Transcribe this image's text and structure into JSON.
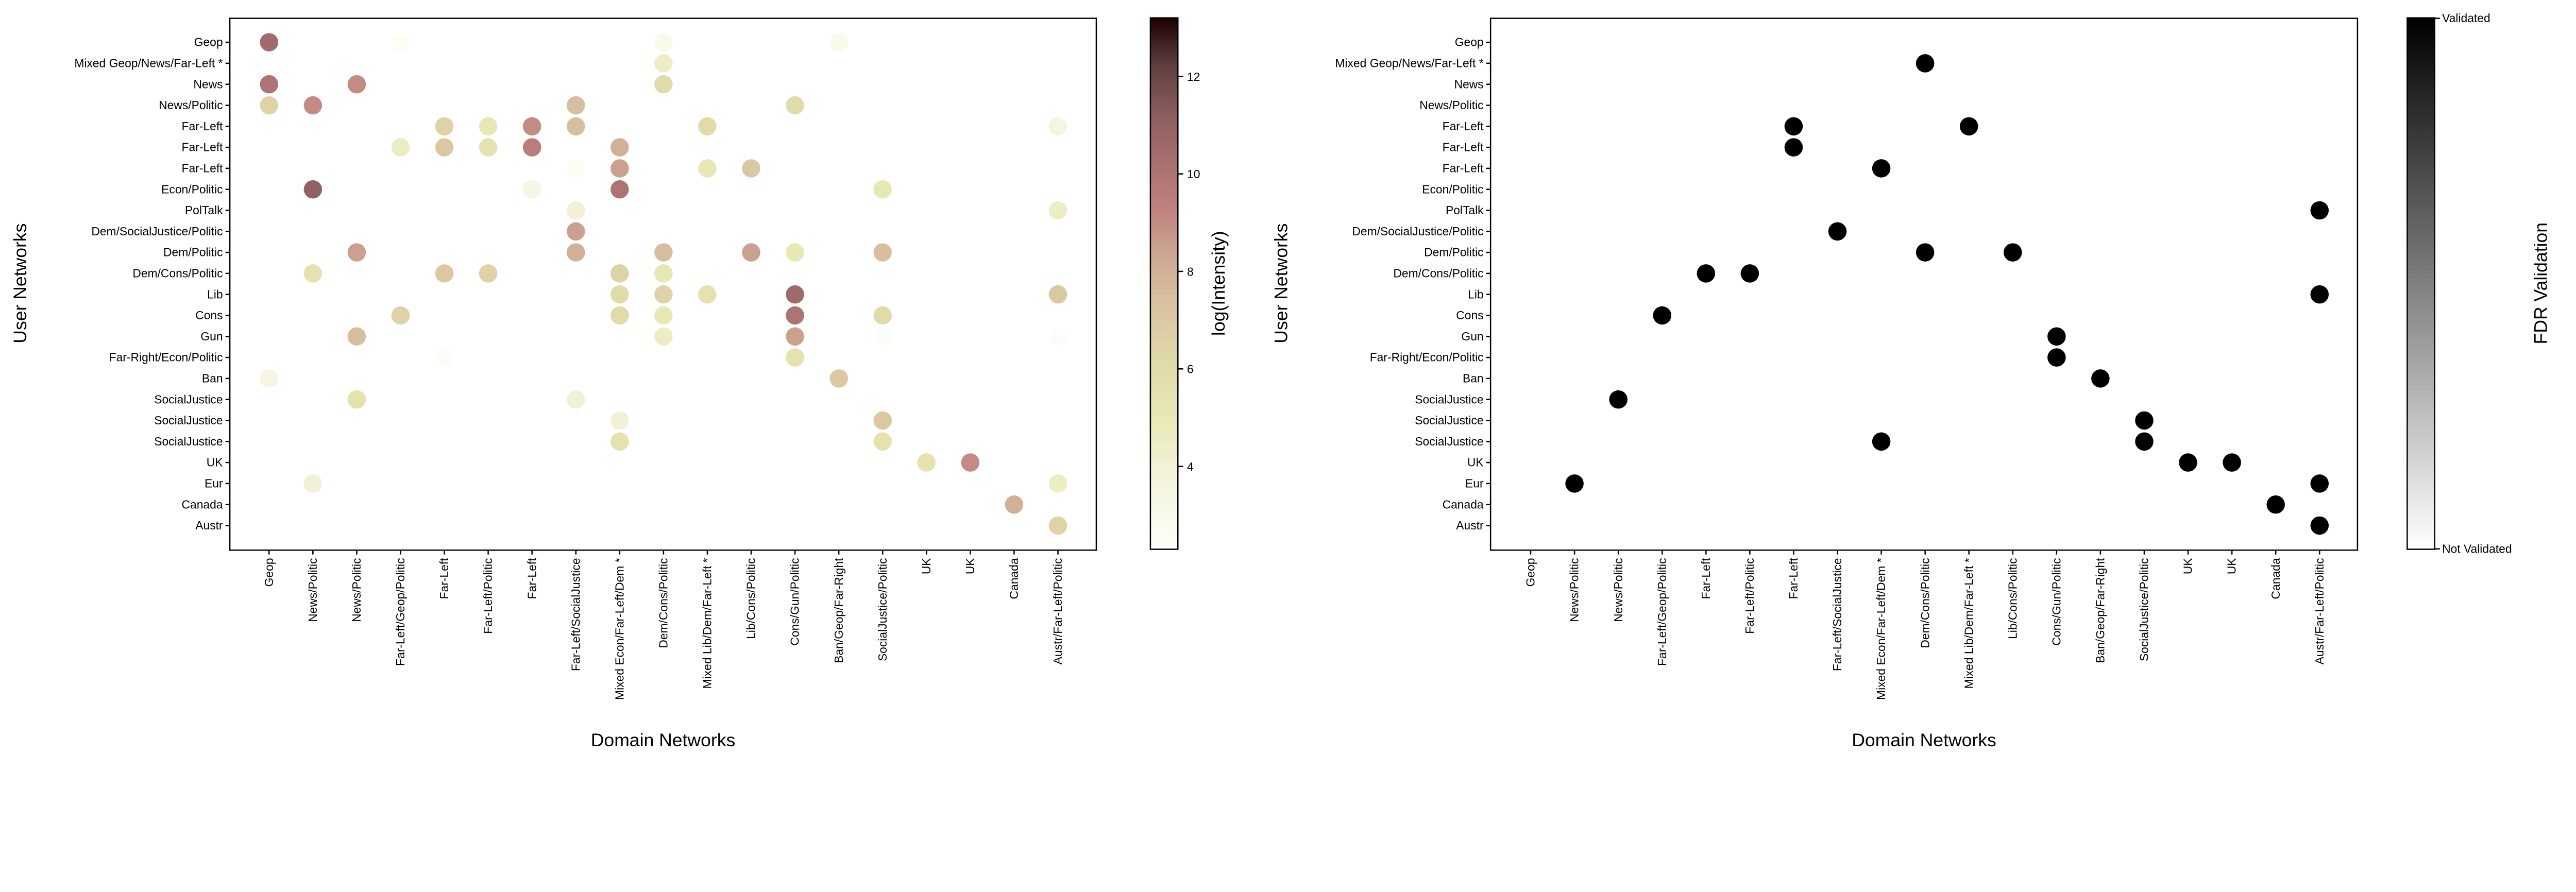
{
  "chart_data": [
    {
      "type": "scatter",
      "xlabel": "Domain Networks",
      "ylabel": "User Networks",
      "x_categories": [
        "Geop",
        "News/Politic",
        "News/Politic",
        "Far-Left/Geop/Politic",
        "Far-Left",
        "Far-Left/Politic",
        "Far-Left",
        "Far-Left/SocialJustice",
        "Mixed Econ/Far-Left/Dem *",
        "Dem/Cons/Politic",
        "Mixed Lib/Dem/Far-Left *",
        "Lib/Cons/Politic",
        "Cons/Gun/Politic",
        "Ban/Geop/Far-Right",
        "SocialJustice/Politic",
        "UK",
        "UK",
        "Canada",
        "Austr/Far-Left/Politic"
      ],
      "y_categories": [
        "Geop",
        "Mixed Geop/News/Far-Left *",
        "News",
        "News/Politic",
        "Far-Left",
        "Far-Left",
        "Far-Left",
        "Econ/Politic",
        "PolTalk",
        "Dem/SocialJustice/Politic",
        "Dem/Politic",
        "Dem/Cons/Politic",
        "Lib",
        "Cons",
        "Gun",
        "Far-Right/Econ/Politic",
        "Ban",
        "SocialJustice",
        "SocialJustice",
        "SocialJustice",
        "UK",
        "Eur",
        "Canada",
        "Austr"
      ],
      "colorbar": {
        "label": "log(Intensity)",
        "range": [
          2.3,
          13.2
        ],
        "ticks": [
          4,
          6,
          8,
          10,
          12
        ],
        "colormap": "pink_r"
      },
      "points_note_fields": [
        "user_row_index",
        "domain_col_index",
        "log_intensity"
      ],
      "points": [
        [
          0,
          0,
          10.5
        ],
        [
          0,
          3,
          2.5
        ],
        [
          0,
          9,
          3
        ],
        [
          0,
          13,
          3
        ],
        [
          1,
          9,
          4.5
        ],
        [
          2,
          0,
          10
        ],
        [
          2,
          2,
          9
        ],
        [
          2,
          9,
          6
        ],
        [
          3,
          0,
          6.5
        ],
        [
          3,
          1,
          9
        ],
        [
          3,
          7,
          7.5
        ],
        [
          3,
          12,
          6
        ],
        [
          4,
          4,
          6.5
        ],
        [
          4,
          5,
          5
        ],
        [
          4,
          6,
          9
        ],
        [
          4,
          7,
          7.5
        ],
        [
          4,
          10,
          6
        ],
        [
          4,
          18,
          3.5
        ],
        [
          5,
          3,
          4.5
        ],
        [
          5,
          4,
          7
        ],
        [
          5,
          5,
          5.5
        ],
        [
          5,
          6,
          9.5
        ],
        [
          5,
          8,
          8
        ],
        [
          6,
          7,
          2.5
        ],
        [
          6,
          8,
          8.5
        ],
        [
          6,
          10,
          5
        ],
        [
          6,
          11,
          7
        ],
        [
          7,
          1,
          11
        ],
        [
          7,
          6,
          3.5
        ],
        [
          7,
          8,
          10
        ],
        [
          7,
          14,
          5
        ],
        [
          8,
          7,
          4
        ],
        [
          8,
          18,
          4.5
        ],
        [
          9,
          7,
          8.5
        ],
        [
          10,
          2,
          8.5
        ],
        [
          10,
          7,
          8
        ],
        [
          10,
          9,
          7.5
        ],
        [
          10,
          11,
          8.5
        ],
        [
          10,
          12,
          5
        ],
        [
          10,
          14,
          7.5
        ],
        [
          11,
          1,
          5.5
        ],
        [
          11,
          4,
          7
        ],
        [
          11,
          5,
          6.5
        ],
        [
          11,
          8,
          6.5
        ],
        [
          11,
          9,
          5
        ],
        [
          12,
          8,
          6
        ],
        [
          12,
          9,
          6.5
        ],
        [
          12,
          10,
          5.5
        ],
        [
          12,
          12,
          10.5
        ],
        [
          12,
          18,
          7
        ],
        [
          13,
          3,
          6.5
        ],
        [
          13,
          8,
          6
        ],
        [
          13,
          9,
          5
        ],
        [
          13,
          12,
          10
        ],
        [
          13,
          14,
          6
        ],
        [
          14,
          2,
          7.5
        ],
        [
          14,
          9,
          4.5
        ],
        [
          14,
          12,
          8.5
        ],
        [
          14,
          14,
          2.5
        ],
        [
          14,
          18,
          2.5
        ],
        [
          15,
          4,
          2.5
        ],
        [
          15,
          12,
          5.5
        ],
        [
          16,
          0,
          3.5
        ],
        [
          16,
          13,
          7
        ],
        [
          17,
          2,
          5.5
        ],
        [
          17,
          7,
          4
        ],
        [
          18,
          8,
          4
        ],
        [
          18,
          14,
          7
        ],
        [
          19,
          8,
          5.5
        ],
        [
          19,
          14,
          5.5
        ],
        [
          20,
          15,
          5.5
        ],
        [
          20,
          16,
          9
        ],
        [
          21,
          1,
          4
        ],
        [
          21,
          18,
          4.5
        ],
        [
          22,
          17,
          8
        ],
        [
          23,
          18,
          6.5
        ]
      ]
    },
    {
      "type": "scatter",
      "xlabel": "Domain Networks",
      "ylabel": "User Networks",
      "x_categories": [
        "Geop",
        "News/Politic",
        "News/Politic",
        "Far-Left/Geop/Politic",
        "Far-Left",
        "Far-Left/Politic",
        "Far-Left",
        "Far-Left/SocialJustice",
        "Mixed Econ/Far-Left/Dem *",
        "Dem/Cons/Politic",
        "Mixed Lib/Dem/Far-Left *",
        "Lib/Cons/Politic",
        "Cons/Gun/Politic",
        "Ban/Geop/Far-Right",
        "SocialJustice/Politic",
        "UK",
        "UK",
        "Canada",
        "Austr/Far-Left/Politic"
      ],
      "y_categories": [
        "Geop",
        "Mixed Geop/News/Far-Left *",
        "News",
        "News/Politic",
        "Far-Left",
        "Far-Left",
        "Far-Left",
        "Econ/Politic",
        "PolTalk",
        "Dem/SocialJustice/Politic",
        "Dem/Politic",
        "Dem/Cons/Politic",
        "Lib",
        "Cons",
        "Gun",
        "Far-Right/Econ/Politic",
        "Ban",
        "SocialJustice",
        "SocialJustice",
        "SocialJustice",
        "UK",
        "Eur",
        "Canada",
        "Austr"
      ],
      "colorbar": {
        "label": "FDR Validation",
        "top_label": "Validated",
        "bottom_label": "Not Validated",
        "colormap": "Greys"
      },
      "validated_points": [
        [
          1,
          9
        ],
        [
          4,
          6
        ],
        [
          4,
          10
        ],
        [
          5,
          6
        ],
        [
          6,
          8
        ],
        [
          8,
          18
        ],
        [
          9,
          7
        ],
        [
          10,
          9
        ],
        [
          10,
          11
        ],
        [
          11,
          4
        ],
        [
          11,
          5
        ],
        [
          12,
          18
        ],
        [
          13,
          3
        ],
        [
          14,
          12
        ],
        [
          15,
          12
        ],
        [
          16,
          13
        ],
        [
          17,
          2
        ],
        [
          18,
          14
        ],
        [
          19,
          8
        ],
        [
          19,
          14
        ],
        [
          20,
          15
        ],
        [
          20,
          16
        ],
        [
          21,
          1
        ],
        [
          21,
          18
        ],
        [
          22,
          17
        ],
        [
          23,
          18
        ]
      ]
    }
  ]
}
